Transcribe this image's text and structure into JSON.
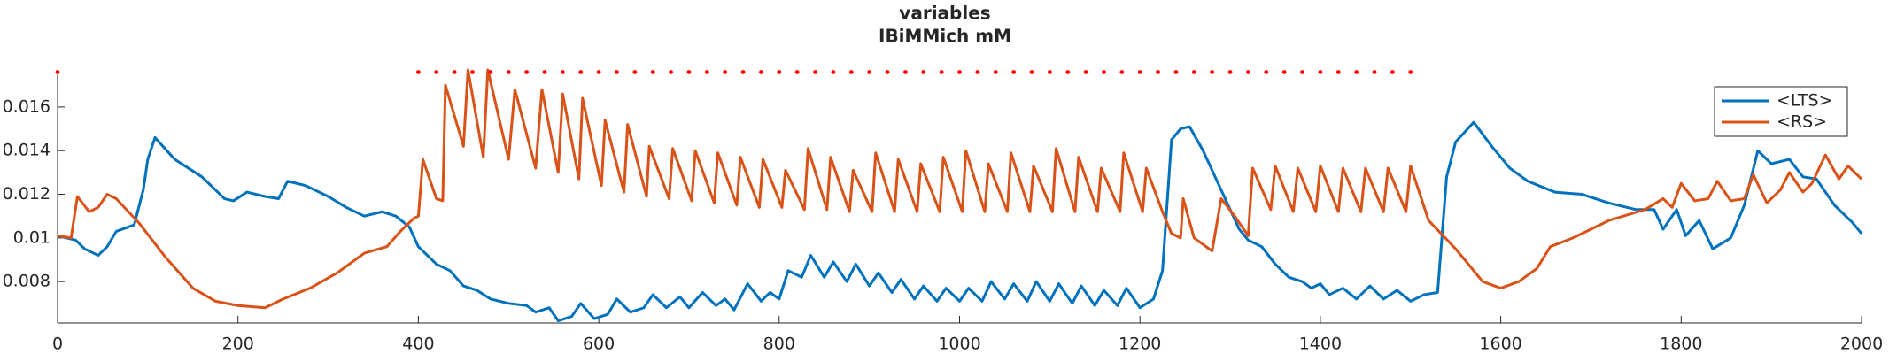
{
  "chart_data": {
    "type": "line",
    "title": "variables",
    "subtitle": "IBiMMich mM",
    "xlim": [
      0,
      2000
    ],
    "ylim": [
      0.0061,
      0.0177
    ],
    "xticks": [
      0,
      200,
      400,
      600,
      800,
      1000,
      1200,
      1400,
      1600,
      1800,
      2000
    ],
    "yticks": [
      0.008,
      0.01,
      0.012,
      0.014,
      0.016
    ],
    "legend_position": "upper-right",
    "series": [
      {
        "name": "<LTS>",
        "color": "#0072bd",
        "x": [
          0,
          20,
          30,
          45,
          55,
          65,
          85,
          95,
          100,
          108,
          130,
          160,
          185,
          195,
          210,
          230,
          245,
          255,
          275,
          300,
          320,
          340,
          360,
          375,
          390,
          400,
          420,
          435,
          450,
          465,
          480,
          500,
          520,
          530,
          545,
          555,
          570,
          580,
          595,
          610,
          620,
          635,
          650,
          660,
          675,
          690,
          700,
          715,
          730,
          740,
          750,
          765,
          780,
          790,
          800,
          810,
          825,
          835,
          850,
          860,
          875,
          885,
          900,
          910,
          925,
          935,
          950,
          960,
          975,
          985,
          1000,
          1010,
          1025,
          1035,
          1050,
          1060,
          1075,
          1085,
          1100,
          1110,
          1125,
          1135,
          1150,
          1160,
          1175,
          1185,
          1200,
          1215,
          1225,
          1235,
          1245,
          1255,
          1270,
          1290,
          1310,
          1320,
          1335,
          1350,
          1365,
          1380,
          1390,
          1400,
          1410,
          1425,
          1440,
          1455,
          1470,
          1485,
          1500,
          1515,
          1530,
          1540,
          1550,
          1570,
          1590,
          1610,
          1630,
          1660,
          1690,
          1720,
          1750,
          1770,
          1780,
          1795,
          1805,
          1820,
          1835,
          1855,
          1870,
          1885,
          1900,
          1920,
          1935,
          1950,
          1970,
          1990,
          2000
        ],
        "values": [
          0.0101,
          0.0099,
          0.0095,
          0.0092,
          0.0096,
          0.0103,
          0.0106,
          0.0122,
          0.0136,
          0.0146,
          0.0136,
          0.0128,
          0.0118,
          0.0117,
          0.0121,
          0.0119,
          0.0118,
          0.0126,
          0.0124,
          0.0119,
          0.0114,
          0.011,
          0.0112,
          0.011,
          0.0105,
          0.0096,
          0.0088,
          0.0085,
          0.0078,
          0.0076,
          0.0072,
          0.007,
          0.0069,
          0.0066,
          0.0068,
          0.0062,
          0.0064,
          0.007,
          0.0063,
          0.0065,
          0.0072,
          0.0066,
          0.0068,
          0.0074,
          0.0068,
          0.0073,
          0.0068,
          0.0075,
          0.0069,
          0.0072,
          0.0067,
          0.0079,
          0.0071,
          0.0075,
          0.0072,
          0.0085,
          0.0082,
          0.0092,
          0.0082,
          0.0089,
          0.008,
          0.0088,
          0.0078,
          0.0084,
          0.0075,
          0.0081,
          0.0072,
          0.0078,
          0.0071,
          0.0077,
          0.0071,
          0.0077,
          0.0071,
          0.008,
          0.0072,
          0.0079,
          0.0071,
          0.008,
          0.0071,
          0.0079,
          0.007,
          0.0078,
          0.0069,
          0.0076,
          0.0069,
          0.0077,
          0.0068,
          0.0072,
          0.0085,
          0.0145,
          0.015,
          0.0151,
          0.014,
          0.0122,
          0.0104,
          0.0099,
          0.0096,
          0.0088,
          0.0082,
          0.008,
          0.0077,
          0.0079,
          0.0074,
          0.0077,
          0.0072,
          0.0078,
          0.0072,
          0.0076,
          0.0071,
          0.0074,
          0.0075,
          0.0128,
          0.0144,
          0.0153,
          0.0142,
          0.0132,
          0.0126,
          0.0121,
          0.012,
          0.0116,
          0.0113,
          0.0113,
          0.0104,
          0.0113,
          0.0101,
          0.0108,
          0.0095,
          0.01,
          0.0115,
          0.014,
          0.0134,
          0.0136,
          0.0128,
          0.0127,
          0.0115,
          0.0107,
          0.0102
        ]
      },
      {
        "name": "<RS>",
        "color": "#d95319",
        "x": [
          0,
          15,
          22,
          35,
          45,
          55,
          65,
          90,
          120,
          150,
          175,
          200,
          230,
          250,
          280,
          310,
          340,
          365,
          380,
          395,
          400,
          405,
          420,
          427,
          430,
          450,
          455,
          472,
          477,
          500,
          507,
          530,
          537,
          555,
          560,
          578,
          582,
          603,
          607,
          628,
          632,
          653,
          656,
          678,
          682,
          703,
          707,
          728,
          732,
          753,
          757,
          778,
          782,
          803,
          807,
          828,
          832,
          853,
          857,
          878,
          882,
          903,
          907,
          928,
          932,
          953,
          957,
          978,
          982,
          1003,
          1007,
          1028,
          1032,
          1053,
          1057,
          1078,
          1082,
          1103,
          1107,
          1128,
          1132,
          1153,
          1157,
          1178,
          1182,
          1203,
          1207,
          1225,
          1235,
          1245,
          1248,
          1260,
          1280,
          1290,
          1305,
          1320,
          1325,
          1345,
          1350,
          1370,
          1375,
          1395,
          1400,
          1420,
          1425,
          1445,
          1450,
          1470,
          1475,
          1495,
          1500,
          1520,
          1550,
          1580,
          1600,
          1620,
          1640,
          1655,
          1680,
          1720,
          1760,
          1780,
          1790,
          1800,
          1815,
          1830,
          1840,
          1855,
          1870,
          1880,
          1895,
          1910,
          1920,
          1935,
          1945,
          1960,
          1975,
          1985,
          2000
        ],
        "values": [
          0.0101,
          0.01,
          0.0119,
          0.0112,
          0.0114,
          0.012,
          0.0118,
          0.0107,
          0.0091,
          0.0077,
          0.0071,
          0.0069,
          0.0068,
          0.0072,
          0.0077,
          0.0084,
          0.0093,
          0.0096,
          0.0103,
          0.0109,
          0.011,
          0.0136,
          0.0118,
          0.0117,
          0.017,
          0.0142,
          0.0177,
          0.0137,
          0.0177,
          0.0136,
          0.0168,
          0.0132,
          0.0168,
          0.013,
          0.0166,
          0.0127,
          0.0164,
          0.0124,
          0.0154,
          0.0121,
          0.0152,
          0.0119,
          0.0142,
          0.0118,
          0.0141,
          0.0117,
          0.014,
          0.0116,
          0.0139,
          0.0115,
          0.0137,
          0.0114,
          0.0136,
          0.0114,
          0.0131,
          0.0113,
          0.0141,
          0.0113,
          0.0137,
          0.0112,
          0.0131,
          0.0112,
          0.0139,
          0.0112,
          0.0136,
          0.0112,
          0.0134,
          0.0112,
          0.0137,
          0.0112,
          0.014,
          0.0112,
          0.0134,
          0.0112,
          0.0139,
          0.0112,
          0.0133,
          0.0112,
          0.0141,
          0.0112,
          0.0137,
          0.0112,
          0.0132,
          0.0112,
          0.0139,
          0.0112,
          0.0132,
          0.0112,
          0.0102,
          0.01,
          0.0118,
          0.01,
          0.0094,
          0.0118,
          0.011,
          0.0101,
          0.0132,
          0.0113,
          0.0133,
          0.0112,
          0.0132,
          0.0112,
          0.0133,
          0.0112,
          0.0132,
          0.0112,
          0.0132,
          0.0112,
          0.0132,
          0.0112,
          0.0133,
          0.0108,
          0.0095,
          0.008,
          0.0077,
          0.008,
          0.0086,
          0.0096,
          0.01,
          0.0108,
          0.0113,
          0.0118,
          0.0114,
          0.0125,
          0.0117,
          0.0118,
          0.0126,
          0.0117,
          0.0118,
          0.0129,
          0.0116,
          0.0122,
          0.013,
          0.0121,
          0.0125,
          0.0138,
          0.0127,
          0.0133,
          0.0127
        ]
      }
    ],
    "spikes": {
      "color": "#ff0000",
      "y": 0.0176,
      "x": [
        0,
        400,
        420,
        440,
        460,
        480,
        500,
        520,
        540,
        560,
        580,
        600,
        620,
        640,
        660,
        680,
        700,
        720,
        740,
        760,
        780,
        800,
        820,
        840,
        860,
        880,
        900,
        920,
        940,
        960,
        980,
        1000,
        1020,
        1040,
        1060,
        1080,
        1100,
        1120,
        1140,
        1160,
        1180,
        1200,
        1220,
        1240,
        1260,
        1280,
        1300,
        1320,
        1340,
        1360,
        1380,
        1400,
        1420,
        1440,
        1460,
        1480,
        1500
      ]
    }
  }
}
